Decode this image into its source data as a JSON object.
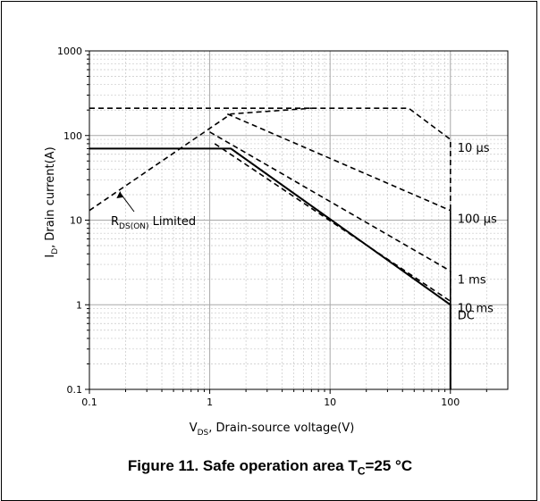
{
  "figure": {
    "caption_prefix": "Figure 11. Safe operation area T",
    "caption_sub": "C",
    "caption_suffix": "=25 °C"
  },
  "chart_data": {
    "type": "line",
    "x_scale": "log",
    "y_scale": "log",
    "xlim": [
      0.1,
      300
    ],
    "ylim": [
      0.1,
      1000
    ],
    "grid": true,
    "xlabel": {
      "main": "V",
      "sub": "DS",
      "rest": ", Drain-source voltage(V)"
    },
    "ylabel": {
      "main": "I",
      "sub": "D",
      "rest": ", Drain current(A)"
    },
    "x_ticks": [
      {
        "value": 0.1,
        "label": "0.1"
      },
      {
        "value": 1,
        "label": "1"
      },
      {
        "value": 10,
        "label": "10"
      },
      {
        "value": 100,
        "label": "100"
      }
    ],
    "y_ticks": [
      {
        "value": 0.1,
        "label": "0.1"
      },
      {
        "value": 1,
        "label": "1"
      },
      {
        "value": 10,
        "label": "10"
      },
      {
        "value": 100,
        "label": "100"
      },
      {
        "value": 1000,
        "label": "1000"
      }
    ],
    "series": [
      {
        "name": "10 µs",
        "style": "dashed",
        "points": [
          [
            7,
            210
          ],
          [
            45,
            210
          ],
          [
            100,
            90
          ],
          [
            100,
            0.1
          ]
        ]
      },
      {
        "name": "100 µs",
        "style": "dashed",
        "points": [
          [
            1.4,
            180
          ],
          [
            100,
            13
          ],
          [
            100,
            0.1
          ]
        ]
      },
      {
        "name": "1 ms",
        "style": "dashed",
        "points": [
          [
            1.0,
            110
          ],
          [
            100,
            2.5
          ],
          [
            100,
            0.1
          ]
        ]
      },
      {
        "name": "10 ms",
        "style": "dashed",
        "points": [
          [
            1.1,
            80
          ],
          [
            100,
            1.1
          ],
          [
            100,
            0.1
          ]
        ]
      },
      {
        "name": "DC",
        "style": "solid",
        "points": [
          [
            0.1,
            70
          ],
          [
            1.5,
            70
          ],
          [
            100,
            1.0
          ],
          [
            100,
            0.1
          ]
        ]
      },
      {
        "name": "",
        "style": "dashed",
        "points": [
          [
            0.1,
            13
          ],
          [
            1.5,
            180
          ],
          [
            7,
            210
          ]
        ]
      },
      {
        "name": "",
        "style": "dashed",
        "points": [
          [
            0.1,
            210
          ],
          [
            7,
            210
          ]
        ]
      }
    ],
    "annotations": [
      {
        "main": "R",
        "sub": "DS(ON)",
        "rest": " Limited",
        "arrow_to": [
          0.18,
          22
        ]
      }
    ],
    "curve_labels": [
      {
        "text": "10 µs",
        "y": 90
      },
      {
        "text": "100 µs",
        "y": 13
      },
      {
        "text": "1 ms",
        "y": 2.5
      },
      {
        "text": "10 ms",
        "y": 1.15
      },
      {
        "text": "DC",
        "y": 0.95
      }
    ]
  }
}
